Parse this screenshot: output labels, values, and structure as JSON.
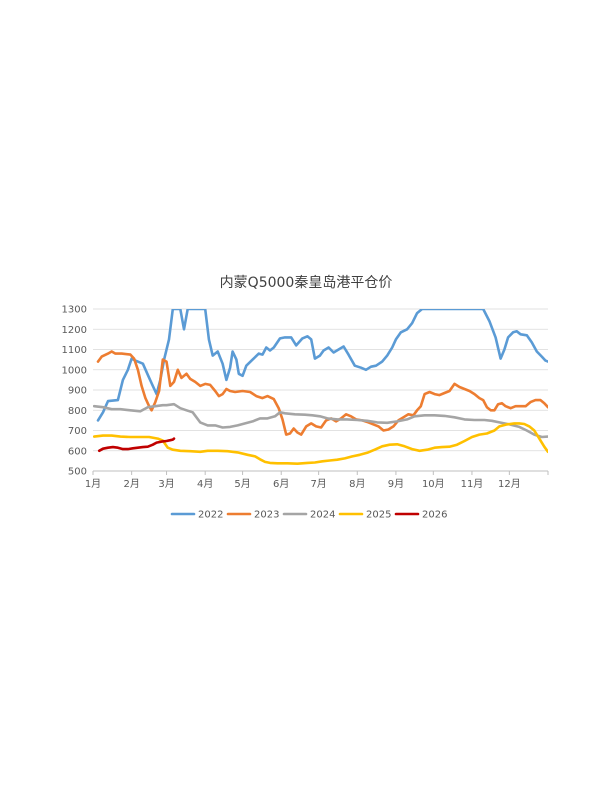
{
  "chart_data": {
    "type": "line",
    "title": "内蒙Q5000秦皇岛港平仓价",
    "xlabel": "",
    "ylabel": "",
    "x_range": [
      0,
      365
    ],
    "ylim": [
      500,
      1300
    ],
    "y_ticks": [
      500,
      600,
      700,
      800,
      900,
      1000,
      1100,
      1200,
      1300
    ],
    "x_tick_labels": [
      "1月",
      "2月",
      "3月",
      "4月",
      "5月",
      "6月",
      "7月",
      "8月",
      "9月",
      "10月",
      "11月",
      "12月"
    ],
    "x_tick_days": [
      0,
      31,
      59,
      90,
      120,
      151,
      181,
      212,
      243,
      273,
      304,
      334
    ],
    "grid": true,
    "legend": "bottom",
    "series": [
      {
        "name": "2022",
        "color": "#5B9BD5",
        "points": [
          [
            4,
            750
          ],
          [
            8,
            790
          ],
          [
            12,
            845
          ],
          [
            20,
            850
          ],
          [
            24,
            950
          ],
          [
            28,
            1000
          ],
          [
            31,
            1055
          ],
          [
            34,
            1045
          ],
          [
            40,
            1030
          ],
          [
            44,
            975
          ],
          [
            48,
            920
          ],
          [
            51,
            880
          ],
          [
            54,
            950
          ],
          [
            57,
            1050
          ],
          [
            61,
            1150
          ],
          [
            64,
            1300
          ],
          [
            70,
            1300
          ],
          [
            73,
            1200
          ],
          [
            76,
            1300
          ],
          [
            90,
            1300
          ],
          [
            93,
            1150
          ],
          [
            96,
            1070
          ],
          [
            100,
            1090
          ],
          [
            104,
            1030
          ],
          [
            107,
            950
          ],
          [
            110,
            1010
          ],
          [
            112,
            1090
          ],
          [
            115,
            1050
          ],
          [
            117,
            980
          ],
          [
            120,
            970
          ],
          [
            123,
            1020
          ],
          [
            128,
            1050
          ],
          [
            133,
            1080
          ],
          [
            136,
            1075
          ],
          [
            139,
            1110
          ],
          [
            142,
            1095
          ],
          [
            145,
            1110
          ],
          [
            150,
            1155
          ],
          [
            154,
            1160
          ],
          [
            159,
            1160
          ],
          [
            163,
            1120
          ],
          [
            168,
            1155
          ],
          [
            172,
            1165
          ],
          [
            175,
            1150
          ],
          [
            178,
            1055
          ],
          [
            182,
            1070
          ],
          [
            185,
            1095
          ],
          [
            189,
            1110
          ],
          [
            193,
            1085
          ],
          [
            197,
            1100
          ],
          [
            201,
            1115
          ],
          [
            205,
            1075
          ],
          [
            210,
            1020
          ],
          [
            215,
            1010
          ],
          [
            219,
            1000
          ],
          [
            223,
            1015
          ],
          [
            227,
            1020
          ],
          [
            232,
            1040
          ],
          [
            236,
            1070
          ],
          [
            240,
            1110
          ],
          [
            243,
            1150
          ],
          [
            247,
            1185
          ],
          [
            252,
            1200
          ],
          [
            256,
            1230
          ],
          [
            260,
            1280
          ],
          [
            264,
            1300
          ],
          [
            313,
            1300
          ],
          [
            318,
            1240
          ],
          [
            323,
            1160
          ],
          [
            327,
            1055
          ],
          [
            330,
            1100
          ],
          [
            333,
            1160
          ],
          [
            337,
            1185
          ],
          [
            340,
            1190
          ],
          [
            343,
            1175
          ],
          [
            348,
            1170
          ],
          [
            352,
            1135
          ],
          [
            356,
            1090
          ],
          [
            360,
            1065
          ],
          [
            363,
            1045
          ],
          [
            365,
            1040
          ]
        ]
      },
      {
        "name": "2023",
        "color": "#ED7D31",
        "points": [
          [
            4,
            1040
          ],
          [
            7,
            1065
          ],
          [
            12,
            1080
          ],
          [
            15,
            1090
          ],
          [
            18,
            1080
          ],
          [
            23,
            1080
          ],
          [
            30,
            1075
          ],
          [
            33,
            1055
          ],
          [
            36,
            1000
          ],
          [
            39,
            920
          ],
          [
            42,
            860
          ],
          [
            45,
            820
          ],
          [
            47,
            800
          ],
          [
            50,
            840
          ],
          [
            53,
            895
          ],
          [
            56,
            1050
          ],
          [
            59,
            1040
          ],
          [
            62,
            920
          ],
          [
            65,
            940
          ],
          [
            68,
            1000
          ],
          [
            71,
            960
          ],
          [
            75,
            980
          ],
          [
            78,
            955
          ],
          [
            82,
            940
          ],
          [
            86,
            920
          ],
          [
            90,
            930
          ],
          [
            94,
            925
          ],
          [
            98,
            895
          ],
          [
            101,
            870
          ],
          [
            104,
            880
          ],
          [
            107,
            905
          ],
          [
            110,
            895
          ],
          [
            114,
            890
          ],
          [
            120,
            895
          ],
          [
            126,
            890
          ],
          [
            131,
            870
          ],
          [
            136,
            860
          ],
          [
            140,
            870
          ],
          [
            145,
            855
          ],
          [
            149,
            810
          ],
          [
            152,
            755
          ],
          [
            155,
            680
          ],
          [
            158,
            685
          ],
          [
            161,
            710
          ],
          [
            164,
            690
          ],
          [
            167,
            680
          ],
          [
            171,
            720
          ],
          [
            175,
            735
          ],
          [
            179,
            720
          ],
          [
            183,
            715
          ],
          [
            187,
            750
          ],
          [
            191,
            760
          ],
          [
            195,
            745
          ],
          [
            199,
            760
          ],
          [
            203,
            780
          ],
          [
            207,
            770
          ],
          [
            211,
            755
          ],
          [
            216,
            750
          ],
          [
            221,
            740
          ],
          [
            225,
            730
          ],
          [
            229,
            720
          ],
          [
            233,
            700
          ],
          [
            237,
            705
          ],
          [
            241,
            720
          ],
          [
            245,
            750
          ],
          [
            249,
            765
          ],
          [
            253,
            780
          ],
          [
            257,
            775
          ],
          [
            260,
            800
          ],
          [
            263,
            820
          ],
          [
            266,
            880
          ],
          [
            270,
            890
          ],
          [
            274,
            880
          ],
          [
            278,
            875
          ],
          [
            282,
            885
          ],
          [
            286,
            895
          ],
          [
            290,
            930
          ],
          [
            294,
            915
          ],
          [
            298,
            905
          ],
          [
            302,
            895
          ],
          [
            306,
            880
          ],
          [
            310,
            860
          ],
          [
            313,
            850
          ],
          [
            316,
            815
          ],
          [
            319,
            800
          ],
          [
            322,
            800
          ],
          [
            325,
            830
          ],
          [
            328,
            835
          ],
          [
            331,
            820
          ],
          [
            335,
            810
          ],
          [
            339,
            820
          ],
          [
            343,
            820
          ],
          [
            347,
            820
          ],
          [
            351,
            840
          ],
          [
            355,
            850
          ],
          [
            359,
            850
          ],
          [
            362,
            835
          ],
          [
            365,
            815
          ]
        ]
      },
      {
        "name": "2024",
        "color": "#A5A5A5",
        "points": [
          [
            1,
            820
          ],
          [
            8,
            815
          ],
          [
            15,
            805
          ],
          [
            22,
            805
          ],
          [
            30,
            800
          ],
          [
            38,
            795
          ],
          [
            44,
            815
          ],
          [
            50,
            820
          ],
          [
            56,
            825
          ],
          [
            59,
            825
          ],
          [
            65,
            830
          ],
          [
            70,
            810
          ],
          [
            75,
            800
          ],
          [
            80,
            790
          ],
          [
            86,
            740
          ],
          [
            92,
            725
          ],
          [
            98,
            725
          ],
          [
            104,
            715
          ],
          [
            110,
            718
          ],
          [
            116,
            725
          ],
          [
            122,
            735
          ],
          [
            128,
            745
          ],
          [
            134,
            760
          ],
          [
            140,
            760
          ],
          [
            146,
            770
          ],
          [
            150,
            790
          ],
          [
            154,
            785
          ],
          [
            162,
            780
          ],
          [
            170,
            778
          ],
          [
            176,
            775
          ],
          [
            182,
            770
          ],
          [
            188,
            760
          ],
          [
            196,
            755
          ],
          [
            204,
            755
          ],
          [
            212,
            752
          ],
          [
            220,
            748
          ],
          [
            228,
            740
          ],
          [
            236,
            738
          ],
          [
            244,
            745
          ],
          [
            252,
            755
          ],
          [
            258,
            770
          ],
          [
            266,
            775
          ],
          [
            274,
            775
          ],
          [
            282,
            772
          ],
          [
            290,
            765
          ],
          [
            298,
            755
          ],
          [
            306,
            752
          ],
          [
            314,
            752
          ],
          [
            320,
            748
          ],
          [
            326,
            740
          ],
          [
            334,
            730
          ],
          [
            342,
            718
          ],
          [
            348,
            700
          ],
          [
            354,
            680
          ],
          [
            360,
            668
          ],
          [
            365,
            670
          ]
        ]
      },
      {
        "name": "2025",
        "color": "#FFC000",
        "points": [
          [
            1,
            670
          ],
          [
            8,
            675
          ],
          [
            15,
            675
          ],
          [
            22,
            670
          ],
          [
            30,
            668
          ],
          [
            38,
            668
          ],
          [
            45,
            668
          ],
          [
            52,
            660
          ],
          [
            56,
            650
          ],
          [
            60,
            615
          ],
          [
            64,
            605
          ],
          [
            70,
            600
          ],
          [
            78,
            598
          ],
          [
            86,
            595
          ],
          [
            92,
            600
          ],
          [
            100,
            600
          ],
          [
            108,
            598
          ],
          [
            116,
            592
          ],
          [
            124,
            580
          ],
          [
            130,
            572
          ],
          [
            134,
            558
          ],
          [
            138,
            545
          ],
          [
            142,
            540
          ],
          [
            148,
            538
          ],
          [
            156,
            538
          ],
          [
            164,
            536
          ],
          [
            172,
            540
          ],
          [
            178,
            542
          ],
          [
            184,
            548
          ],
          [
            190,
            552
          ],
          [
            196,
            556
          ],
          [
            202,
            562
          ],
          [
            208,
            572
          ],
          [
            214,
            580
          ],
          [
            220,
            590
          ],
          [
            226,
            605
          ],
          [
            232,
            622
          ],
          [
            238,
            630
          ],
          [
            244,
            632
          ],
          [
            250,
            622
          ],
          [
            256,
            608
          ],
          [
            262,
            600
          ],
          [
            268,
            605
          ],
          [
            274,
            615
          ],
          [
            280,
            618
          ],
          [
            286,
            620
          ],
          [
            292,
            630
          ],
          [
            298,
            648
          ],
          [
            304,
            668
          ],
          [
            310,
            680
          ],
          [
            316,
            685
          ],
          [
            322,
            700
          ],
          [
            326,
            720
          ],
          [
            332,
            730
          ],
          [
            338,
            735
          ],
          [
            342,
            735
          ],
          [
            346,
            732
          ],
          [
            350,
            720
          ],
          [
            354,
            700
          ],
          [
            358,
            660
          ],
          [
            362,
            620
          ],
          [
            365,
            595
          ],
          [
            370,
            588
          ],
          [
            373,
            592
          ]
        ]
      },
      {
        "name": "2026",
        "color": "#C00000",
        "points": [
          [
            5,
            600
          ],
          [
            8,
            610
          ],
          [
            12,
            615
          ],
          [
            16,
            618
          ],
          [
            20,
            615
          ],
          [
            24,
            608
          ],
          [
            28,
            608
          ],
          [
            32,
            612
          ],
          [
            36,
            615
          ],
          [
            40,
            618
          ],
          [
            44,
            620
          ],
          [
            48,
            630
          ],
          [
            51,
            640
          ],
          [
            55,
            645
          ],
          [
            59,
            648
          ],
          [
            62,
            652
          ],
          [
            64,
            655
          ],
          [
            65,
            660
          ]
        ]
      }
    ]
  }
}
